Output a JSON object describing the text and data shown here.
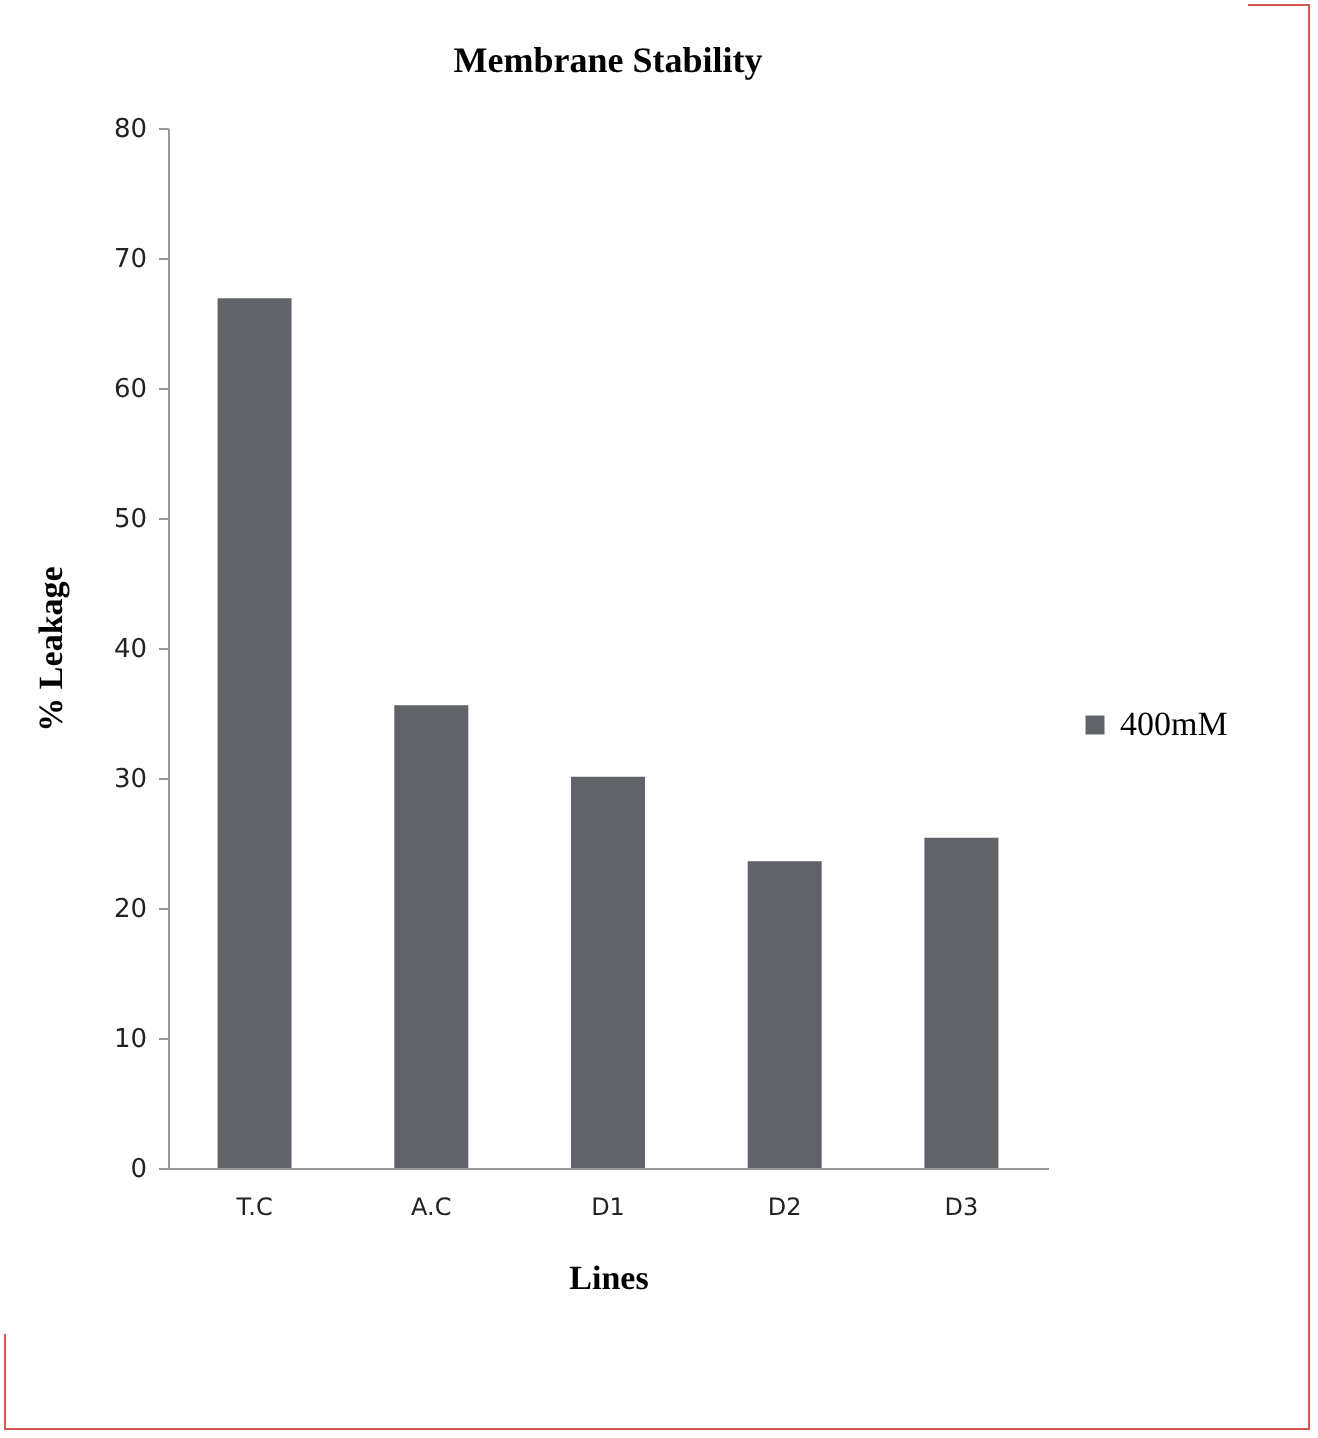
{
  "chart_data": {
    "type": "bar",
    "title": "Membrane Stability",
    "xlabel": "Lines",
    "ylabel": "% Leakage",
    "categories": [
      "T.C",
      "A.C",
      "D1",
      "D2",
      "D3"
    ],
    "series": [
      {
        "name": "400mM",
        "color": "#606468",
        "values": [
          66.9,
          35.6,
          30.1,
          23.6,
          25.4
        ]
      }
    ],
    "ylim": [
      0,
      80
    ],
    "yticks": [
      0,
      10,
      20,
      30,
      40,
      50,
      60,
      70,
      80
    ],
    "grid": false,
    "legend": "right"
  }
}
